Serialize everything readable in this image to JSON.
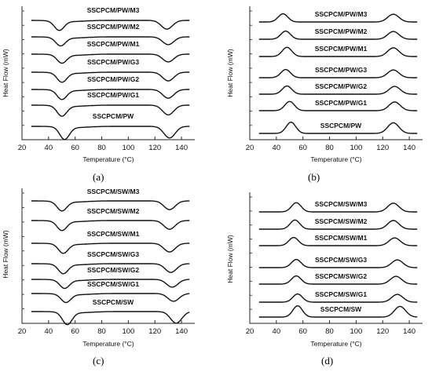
{
  "figure": {
    "panel_captions": [
      "(a)",
      "(b)",
      "(c)",
      "(d)"
    ]
  },
  "chart_data": [
    {
      "type": "line",
      "panel": "(a)",
      "xlabel": "Temperature (°C)",
      "ylabel": "Heat Flow (mW)",
      "xlim": [
        20,
        150
      ],
      "xticks": [
        20,
        40,
        60,
        80,
        100,
        120,
        140
      ],
      "peak_direction": "down",
      "peaks_x": [
        50,
        130
      ],
      "series": [
        {
          "name": "SSCPCM/PW/M3",
          "peak1": 48,
          "peak2": 129,
          "depth": 0.9
        },
        {
          "name": "SSCPCM/PW/M2",
          "peak1": 49,
          "peak2": 130,
          "depth": 0.8
        },
        {
          "name": "SSCPCM/PW/M1",
          "peak1": 50,
          "peak2": 130,
          "depth": 0.8
        },
        {
          "name": "SSCPCM/PW/G3",
          "peak1": 50,
          "peak2": 130,
          "depth": 0.9
        },
        {
          "name": "SSCPCM/PW/G2",
          "peak1": 50,
          "peak2": 130,
          "depth": 0.9
        },
        {
          "name": "SSCPCM/PW/G1",
          "peak1": 50,
          "peak2": 130,
          "depth": 1.0
        },
        {
          "name": "SSCPCM/PW",
          "peak1": 52,
          "peak2": 131,
          "depth": 1.2
        }
      ]
    },
    {
      "type": "line",
      "panel": "(b)",
      "xlabel": "Temperature (°C)",
      "ylabel": "Heat Flow (mW)",
      "xlim": [
        20,
        150
      ],
      "xticks": [
        20,
        40,
        60,
        80,
        100,
        120,
        140
      ],
      "peak_direction": "up",
      "series": [
        {
          "name": "SSCPCM/PW/M3",
          "peak1": 45,
          "peak2": 128,
          "depth": 0.8
        },
        {
          "name": "SSCPCM/PW/M2",
          "peak1": 47,
          "peak2": 128,
          "depth": 0.8
        },
        {
          "name": "SSCPCM/PW/M1",
          "peak1": 48,
          "peak2": 128,
          "depth": 0.9
        },
        {
          "name": "SSCPCM/PW/G3",
          "peak1": 47,
          "peak2": 128,
          "depth": 0.8
        },
        {
          "name": "SSCPCM/PW/G2",
          "peak1": 48,
          "peak2": 129,
          "depth": 0.8
        },
        {
          "name": "SSCPCM/PW/G1",
          "peak1": 50,
          "peak2": 129,
          "depth": 0.9
        },
        {
          "name": "SSCPCM/PW",
          "peak1": 51,
          "peak2": 128,
          "depth": 1.1
        }
      ]
    },
    {
      "type": "line",
      "panel": "(c)",
      "xlabel": "Temperature (°C)",
      "ylabel": "Heat Flow (mW)",
      "xlim": [
        20,
        150
      ],
      "xticks": [
        20,
        40,
        60,
        80,
        100,
        120,
        140
      ],
      "peak_direction": "down",
      "series": [
        {
          "name": "SSCPCM/SW/M3",
          "peak1": 50,
          "peak2": 131,
          "depth": 0.9
        },
        {
          "name": "SSCPCM/SW/M2",
          "peak1": 50,
          "peak2": 131,
          "depth": 0.9
        },
        {
          "name": "SSCPCM/SW/M1",
          "peak1": 51,
          "peak2": 131,
          "depth": 0.9
        },
        {
          "name": "SSCPCM/SW/G3",
          "peak1": 51,
          "peak2": 132,
          "depth": 0.9
        },
        {
          "name": "SSCPCM/SW/G2",
          "peak1": 52,
          "peak2": 133,
          "depth": 0.8
        },
        {
          "name": "SSCPCM/SW/G1",
          "peak1": 53,
          "peak2": 134,
          "depth": 0.8
        },
        {
          "name": "SSCPCM/SW",
          "peak1": 54,
          "peak2": 136,
          "depth": 1.2
        }
      ]
    },
    {
      "type": "line",
      "panel": "(d)",
      "xlabel": "Temperature (°C)",
      "ylabel": "Heat Flow (mW)",
      "xlim": [
        20,
        150
      ],
      "xticks": [
        20,
        40,
        60,
        80,
        100,
        120,
        140
      ],
      "peak_direction": "up",
      "series": [
        {
          "name": "SSCPCM/SW/M3",
          "peak1": 55,
          "peak2": 128,
          "depth": 0.9
        },
        {
          "name": "SSCPCM/SW/M2",
          "peak1": 54,
          "peak2": 128,
          "depth": 0.9
        },
        {
          "name": "SSCPCM/SW/M1",
          "peak1": 53,
          "peak2": 129,
          "depth": 0.8
        },
        {
          "name": "SSCPCM/SW/G3",
          "peak1": 55,
          "peak2": 131,
          "depth": 0.8
        },
        {
          "name": "SSCPCM/SW/G2",
          "peak1": 55,
          "peak2": 130,
          "depth": 0.8
        },
        {
          "name": "SSCPCM/SW/G1",
          "peak1": 56,
          "peak2": 131,
          "depth": 0.8
        },
        {
          "name": "SSCPCM/SW",
          "peak1": 56,
          "peak2": 133,
          "depth": 1.1
        }
      ]
    }
  ]
}
